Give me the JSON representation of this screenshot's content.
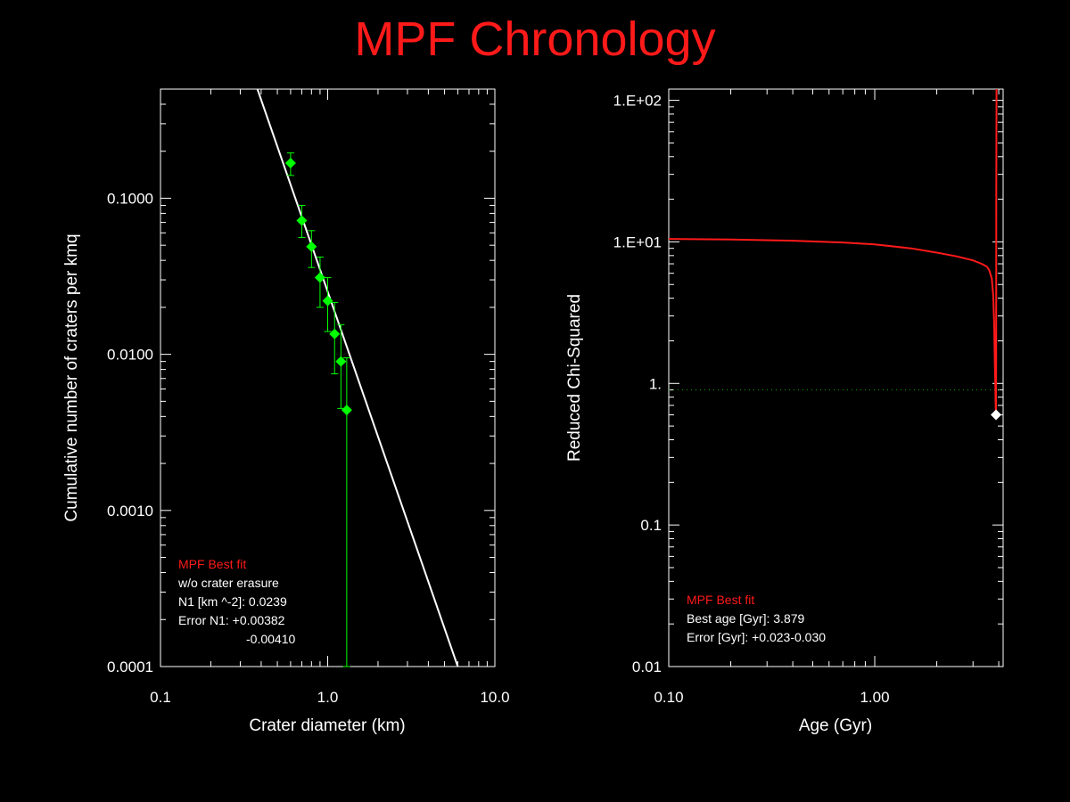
{
  "title": "MPF Chronology",
  "colors": {
    "background": "#000000",
    "foreground": "#ffffff",
    "title": "#ff1a1a",
    "data_points": "#00ff00",
    "fit_line": "#ffffff",
    "chi_curve": "#ff1a1a",
    "reference_line": "#00aa00",
    "annotation_highlight": "#ff1a1a"
  },
  "chart_data": [
    {
      "type": "scatter",
      "xlabel": "Crater diameter (km)",
      "ylabel": "Cumulative number of craters per kmq",
      "xscale": "log",
      "yscale": "log",
      "xlim": [
        0.1,
        10.0
      ],
      "ylim": [
        0.0001,
        0.5
      ],
      "x_ticks": [
        {
          "value": 0.1,
          "label": "0.1"
        },
        {
          "value": 1.0,
          "label": "1.0"
        },
        {
          "value": 10.0,
          "label": "10.0"
        }
      ],
      "y_ticks": [
        {
          "value": 0.0001,
          "label": "0.0001"
        },
        {
          "value": 0.001,
          "label": "0.0010"
        },
        {
          "value": 0.01,
          "label": "0.0100"
        },
        {
          "value": 0.1,
          "label": "0.1000"
        }
      ],
      "grid": false,
      "points": [
        {
          "x": 0.6,
          "y": 0.168,
          "err_low": 0.14,
          "err_high": 0.195
        },
        {
          "x": 0.7,
          "y": 0.072,
          "err_low": 0.056,
          "err_high": 0.09
        },
        {
          "x": 0.8,
          "y": 0.049,
          "err_low": 0.036,
          "err_high": 0.062
        },
        {
          "x": 0.9,
          "y": 0.031,
          "err_low": 0.02,
          "err_high": 0.042
        },
        {
          "x": 1.0,
          "y": 0.022,
          "err_low": 0.014,
          "err_high": 0.031
        },
        {
          "x": 1.1,
          "y": 0.0135,
          "err_low": 0.0075,
          "err_high": 0.0215
        },
        {
          "x": 1.2,
          "y": 0.009,
          "err_low": 0.0045,
          "err_high": 0.0155
        },
        {
          "x": 1.3,
          "y": 0.0044,
          "err_low": 0.0001,
          "err_high": 0.0095
        }
      ],
      "fit_line": {
        "x": [
          0.38,
          6.0
        ],
        "y": [
          0.5,
          0.0001
        ]
      },
      "annotation": {
        "heading": "MPF Best fit",
        "lines": [
          "w/o crater erasure",
          "N1 [km ^-2]: 0.0239",
          "Error N1: +0.00382",
          "-0.00410"
        ]
      }
    },
    {
      "type": "line",
      "xlabel": "Age (Gyr)",
      "ylabel": "Reduced Chi-Squared",
      "xscale": "log",
      "yscale": "log",
      "xlim": [
        0.1,
        4.2
      ],
      "ylim": [
        0.01,
        120
      ],
      "x_ticks": [
        {
          "value": 0.1,
          "label": "0.10"
        },
        {
          "value": 1.0,
          "label": "1.00"
        }
      ],
      "y_ticks": [
        {
          "value": 0.01,
          "label": "0.01"
        },
        {
          "value": 0.1,
          "label": "0.1"
        },
        {
          "value": 1,
          "label": "1."
        },
        {
          "value": 10,
          "label": "1.E+01"
        },
        {
          "value": 100,
          "label": "1.E+02"
        }
      ],
      "grid": false,
      "series": [
        {
          "x": [
            0.1,
            0.2,
            0.4,
            0.7,
            1.0,
            1.5,
            2.0,
            2.5,
            3.0,
            3.3,
            3.5,
            3.6,
            3.7,
            3.76,
            3.8,
            3.83,
            3.85,
            3.86,
            3.87,
            3.879,
            3.885,
            3.89,
            3.9
          ],
          "y": [
            10.5,
            10.4,
            10.2,
            9.9,
            9.6,
            9.0,
            8.4,
            7.9,
            7.4,
            7.0,
            6.7,
            6.3,
            5.5,
            4.2,
            2.6,
            1.4,
            0.95,
            0.75,
            0.64,
            0.6,
            1.5,
            20,
            120
          ]
        }
      ],
      "reference_line": {
        "y": 0.9
      },
      "best_point": {
        "x": 3.879,
        "y": 0.6
      },
      "annotation": {
        "heading": "MPF Best fit",
        "lines": [
          "Best age [Gyr]: 3.879",
          "Error [Gyr]: +0.023-0.030"
        ]
      }
    }
  ]
}
